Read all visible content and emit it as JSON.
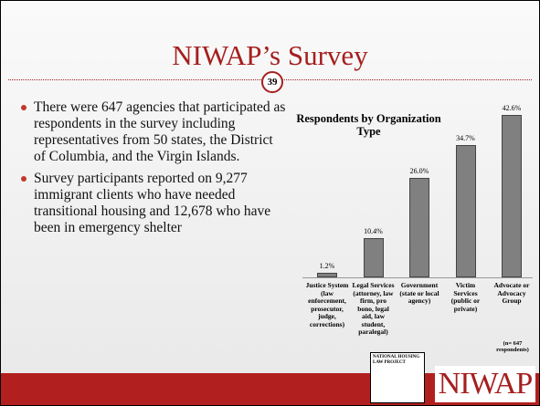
{
  "slide": {
    "title": "NIWAP’s Survey",
    "page_number": "39",
    "bullets": [
      "There were 647 agencies that participated as respondents in the survey including representatives from 50 states, the District of Columbia, and the Virgin Islands.",
      "Survey participants reported on 9,277 immigrant clients who have needed transitional housing and 12,678 who have been in emergency shelter"
    ],
    "logos": [
      "NATIONAL HOUSING LAW PROJECT",
      "NIWAP"
    ]
  },
  "chart_data": {
    "type": "bar",
    "title": "Respondents by Organization Type",
    "categories": [
      "Justice System (law enforcement, prosecutor, judge, corrections)",
      "Legal Services (attorney, law firm, pro bono, legal aid, law student, paralegal)",
      "Government (state or local agency)",
      "Victim Services (public or private)",
      "Advocate or Advocacy Group"
    ],
    "values": [
      1.2,
      10.4,
      26.0,
      34.7,
      42.6
    ],
    "value_labels": [
      "1.2%",
      "10.4%",
      "26.0%",
      "34.7%",
      "42.6%"
    ],
    "color": "#808080",
    "ylim": [
      0,
      45
    ],
    "annotation": "(n= 647 respondents)"
  }
}
